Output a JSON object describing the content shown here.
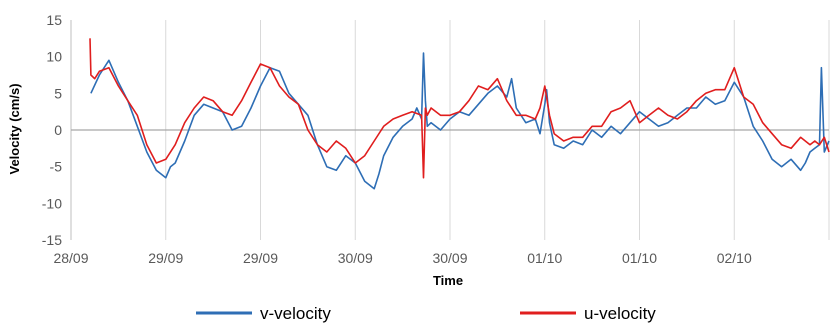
{
  "chart_data": {
    "type": "line",
    "title": "",
    "xlabel": "Time",
    "ylabel": "Velocity (cm/s)",
    "ylim": [
      -15,
      15
    ],
    "yticks": [
      -15,
      -10,
      -5,
      0,
      5,
      10,
      15
    ],
    "xlim": [
      0,
      8
    ],
    "x_tick_positions": [
      0,
      1,
      2,
      3,
      4,
      5,
      6,
      7,
      8
    ],
    "x_tick_labels": [
      "28/09",
      "29/09",
      "29/09",
      "30/09",
      "30/09",
      "01/10",
      "01/10",
      "02/10",
      ""
    ],
    "gridlines": "vertical",
    "legend": "bottom",
    "series": [
      {
        "name": "v-velocity",
        "color": "#2e6eb5",
        "x": [
          0.21,
          0.3,
          0.4,
          0.5,
          0.6,
          0.7,
          0.8,
          0.9,
          1.0,
          1.05,
          1.1,
          1.2,
          1.3,
          1.4,
          1.5,
          1.6,
          1.7,
          1.8,
          1.9,
          2.0,
          2.1,
          2.2,
          2.3,
          2.4,
          2.5,
          2.6,
          2.7,
          2.8,
          2.9,
          3.0,
          3.1,
          3.2,
          3.25,
          3.3,
          3.4,
          3.5,
          3.6,
          3.65,
          3.7,
          3.72,
          3.74,
          3.76,
          3.8,
          3.9,
          4.0,
          4.1,
          4.2,
          4.3,
          4.4,
          4.5,
          4.6,
          4.65,
          4.7,
          4.8,
          4.9,
          4.95,
          5.0,
          5.02,
          5.05,
          5.1,
          5.2,
          5.3,
          5.4,
          5.5,
          5.6,
          5.7,
          5.8,
          5.9,
          6.0,
          6.1,
          6.2,
          6.3,
          6.4,
          6.5,
          6.6,
          6.7,
          6.8,
          6.9,
          7.0,
          7.1,
          7.2,
          7.3,
          7.4,
          7.5,
          7.6,
          7.7,
          7.75,
          7.8,
          7.85,
          7.9,
          7.92,
          7.95,
          8.0
        ],
        "values": [
          5.0,
          7.5,
          9.5,
          6.5,
          4.0,
          0.5,
          -3.0,
          -5.5,
          -6.5,
          -5.0,
          -4.5,
          -1.5,
          2.0,
          3.5,
          3.0,
          2.5,
          0.0,
          0.5,
          3.0,
          6.0,
          8.5,
          8.0,
          5.0,
          3.5,
          2.0,
          -2.0,
          -5.0,
          -5.5,
          -3.5,
          -4.5,
          -7.0,
          -8.0,
          -6.0,
          -3.5,
          -1.0,
          0.5,
          1.5,
          3.0,
          1.5,
          10.5,
          4.0,
          0.5,
          1.0,
          0.0,
          1.5,
          2.5,
          2.0,
          3.5,
          5.0,
          6.0,
          4.5,
          7.0,
          3.0,
          1.0,
          1.5,
          -0.5,
          3.5,
          5.5,
          1.0,
          -2.0,
          -2.5,
          -1.5,
          -2.0,
          0.0,
          -1.0,
          0.5,
          -0.5,
          1.0,
          2.5,
          1.5,
          0.5,
          1.0,
          2.0,
          3.0,
          3.0,
          4.5,
          3.5,
          4.0,
          6.5,
          4.5,
          0.5,
          -1.5,
          -4.0,
          -5.0,
          -4.0,
          -5.5,
          -4.5,
          -3.0,
          -2.5,
          -2.0,
          8.5,
          -3.0,
          -1.5
        ]
      },
      {
        "name": "u-velocity",
        "color": "#e01e1e",
        "x": [
          0.2,
          0.21,
          0.25,
          0.3,
          0.4,
          0.5,
          0.6,
          0.7,
          0.8,
          0.9,
          1.0,
          1.1,
          1.2,
          1.3,
          1.4,
          1.5,
          1.6,
          1.7,
          1.8,
          1.9,
          2.0,
          2.1,
          2.2,
          2.3,
          2.4,
          2.5,
          2.6,
          2.7,
          2.8,
          2.9,
          3.0,
          3.1,
          3.2,
          3.3,
          3.4,
          3.5,
          3.6,
          3.7,
          3.72,
          3.74,
          3.76,
          3.8,
          3.9,
          4.0,
          4.1,
          4.2,
          4.3,
          4.4,
          4.5,
          4.6,
          4.65,
          4.7,
          4.8,
          4.9,
          4.95,
          5.0,
          5.05,
          5.1,
          5.2,
          5.3,
          5.4,
          5.5,
          5.6,
          5.7,
          5.8,
          5.9,
          6.0,
          6.1,
          6.2,
          6.3,
          6.4,
          6.5,
          6.6,
          6.7,
          6.8,
          6.9,
          7.0,
          7.1,
          7.2,
          7.3,
          7.4,
          7.5,
          7.6,
          7.7,
          7.8,
          7.85,
          7.9,
          7.95,
          8.0
        ],
        "values": [
          12.5,
          7.5,
          7.0,
          8.0,
          8.5,
          6.0,
          4.0,
          2.0,
          -2.0,
          -4.5,
          -4.0,
          -2.0,
          1.0,
          3.0,
          4.5,
          4.0,
          2.5,
          2.0,
          4.0,
          6.5,
          9.0,
          8.5,
          6.0,
          4.5,
          3.5,
          0.0,
          -2.0,
          -3.0,
          -1.5,
          -2.5,
          -4.5,
          -3.5,
          -1.5,
          0.5,
          1.5,
          2.0,
          2.5,
          2.0,
          -6.5,
          3.0,
          2.0,
          3.0,
          2.0,
          2.0,
          2.5,
          4.0,
          6.0,
          5.5,
          7.0,
          4.0,
          3.0,
          2.0,
          2.0,
          1.5,
          3.0,
          6.0,
          2.0,
          -0.5,
          -1.5,
          -1.0,
          -1.0,
          0.5,
          0.5,
          2.5,
          3.0,
          4.0,
          1.0,
          2.0,
          3.0,
          2.0,
          1.5,
          2.5,
          4.0,
          5.0,
          5.5,
          5.5,
          8.5,
          4.5,
          3.5,
          1.0,
          -0.5,
          -2.0,
          -2.5,
          -1.0,
          -2.0,
          -1.5,
          -2.0,
          -1.0,
          -3.0
        ]
      }
    ]
  }
}
